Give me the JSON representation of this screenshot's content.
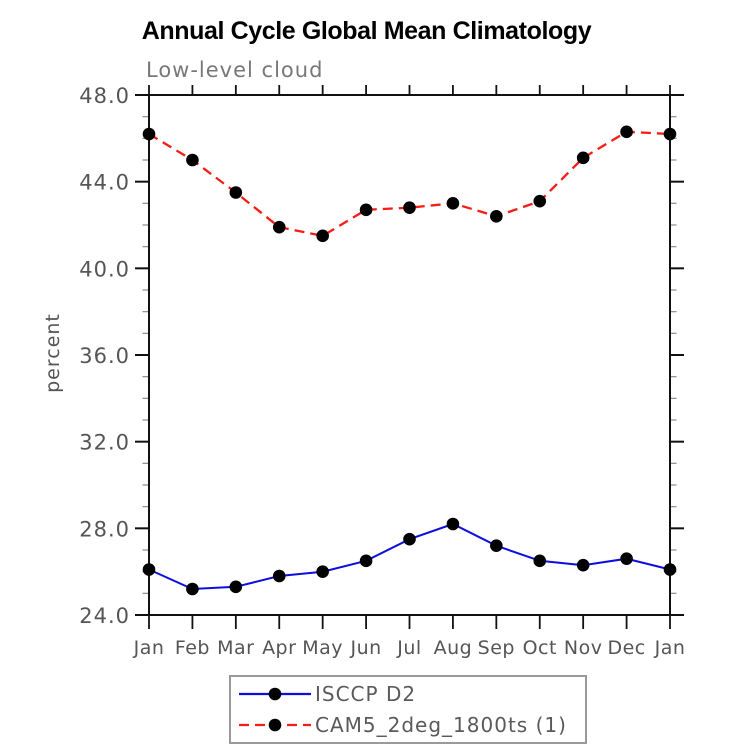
{
  "page": {
    "title": "Annual Cycle Global Mean Climatology",
    "subtitle": "Low-level cloud"
  },
  "chart_data": {
    "type": "line",
    "title": "Annual Cycle Global Mean Climatology",
    "subtitle": "Low-level cloud",
    "xlabel": "",
    "ylabel": "percent",
    "categories": [
      "Jan",
      "Feb",
      "Mar",
      "Apr",
      "May",
      "Jun",
      "Jul",
      "Aug",
      "Sep",
      "Oct",
      "Nov",
      "Dec",
      "Jan"
    ],
    "ylim": [
      24.0,
      48.0
    ],
    "yticks": [
      {
        "value": 48,
        "label": "48.0"
      },
      {
        "value": 44,
        "label": "44.0"
      },
      {
        "value": 40,
        "label": "40.0"
      },
      {
        "value": 36,
        "label": "36.0"
      },
      {
        "value": 32,
        "label": "32.0"
      },
      {
        "value": 28,
        "label": "28.0"
      },
      {
        "value": 24,
        "label": "24.0"
      }
    ],
    "ytick_minor_step": 1.0,
    "grid": false,
    "legend_position": "bottom",
    "series": [
      {
        "name": "ISCCP D2",
        "color": "#0d0de0",
        "line_style": "solid",
        "marker": "circle",
        "marker_color": "#000000",
        "values": [
          26.1,
          25.2,
          25.3,
          25.8,
          26.0,
          26.5,
          27.5,
          28.2,
          27.2,
          26.5,
          26.3,
          26.6,
          26.1
        ]
      },
      {
        "name": "CAM5_2deg_1800ts (1)",
        "color": "#f51d15",
        "line_style": "dashed",
        "marker": "circle",
        "marker_color": "#000000",
        "values": [
          46.2,
          45.0,
          43.5,
          41.9,
          41.5,
          42.7,
          42.8,
          43.0,
          42.4,
          43.1,
          45.1,
          46.3,
          46.2
        ]
      }
    ]
  },
  "colors": {
    "axis": "#111111",
    "minor_tick": "#8c8c8c",
    "tick_label": "#555555",
    "subtitle": "#787878",
    "legend_border": "#9a9a9a",
    "legend_text": "#5a5a5a",
    "background": "#ffffff"
  }
}
